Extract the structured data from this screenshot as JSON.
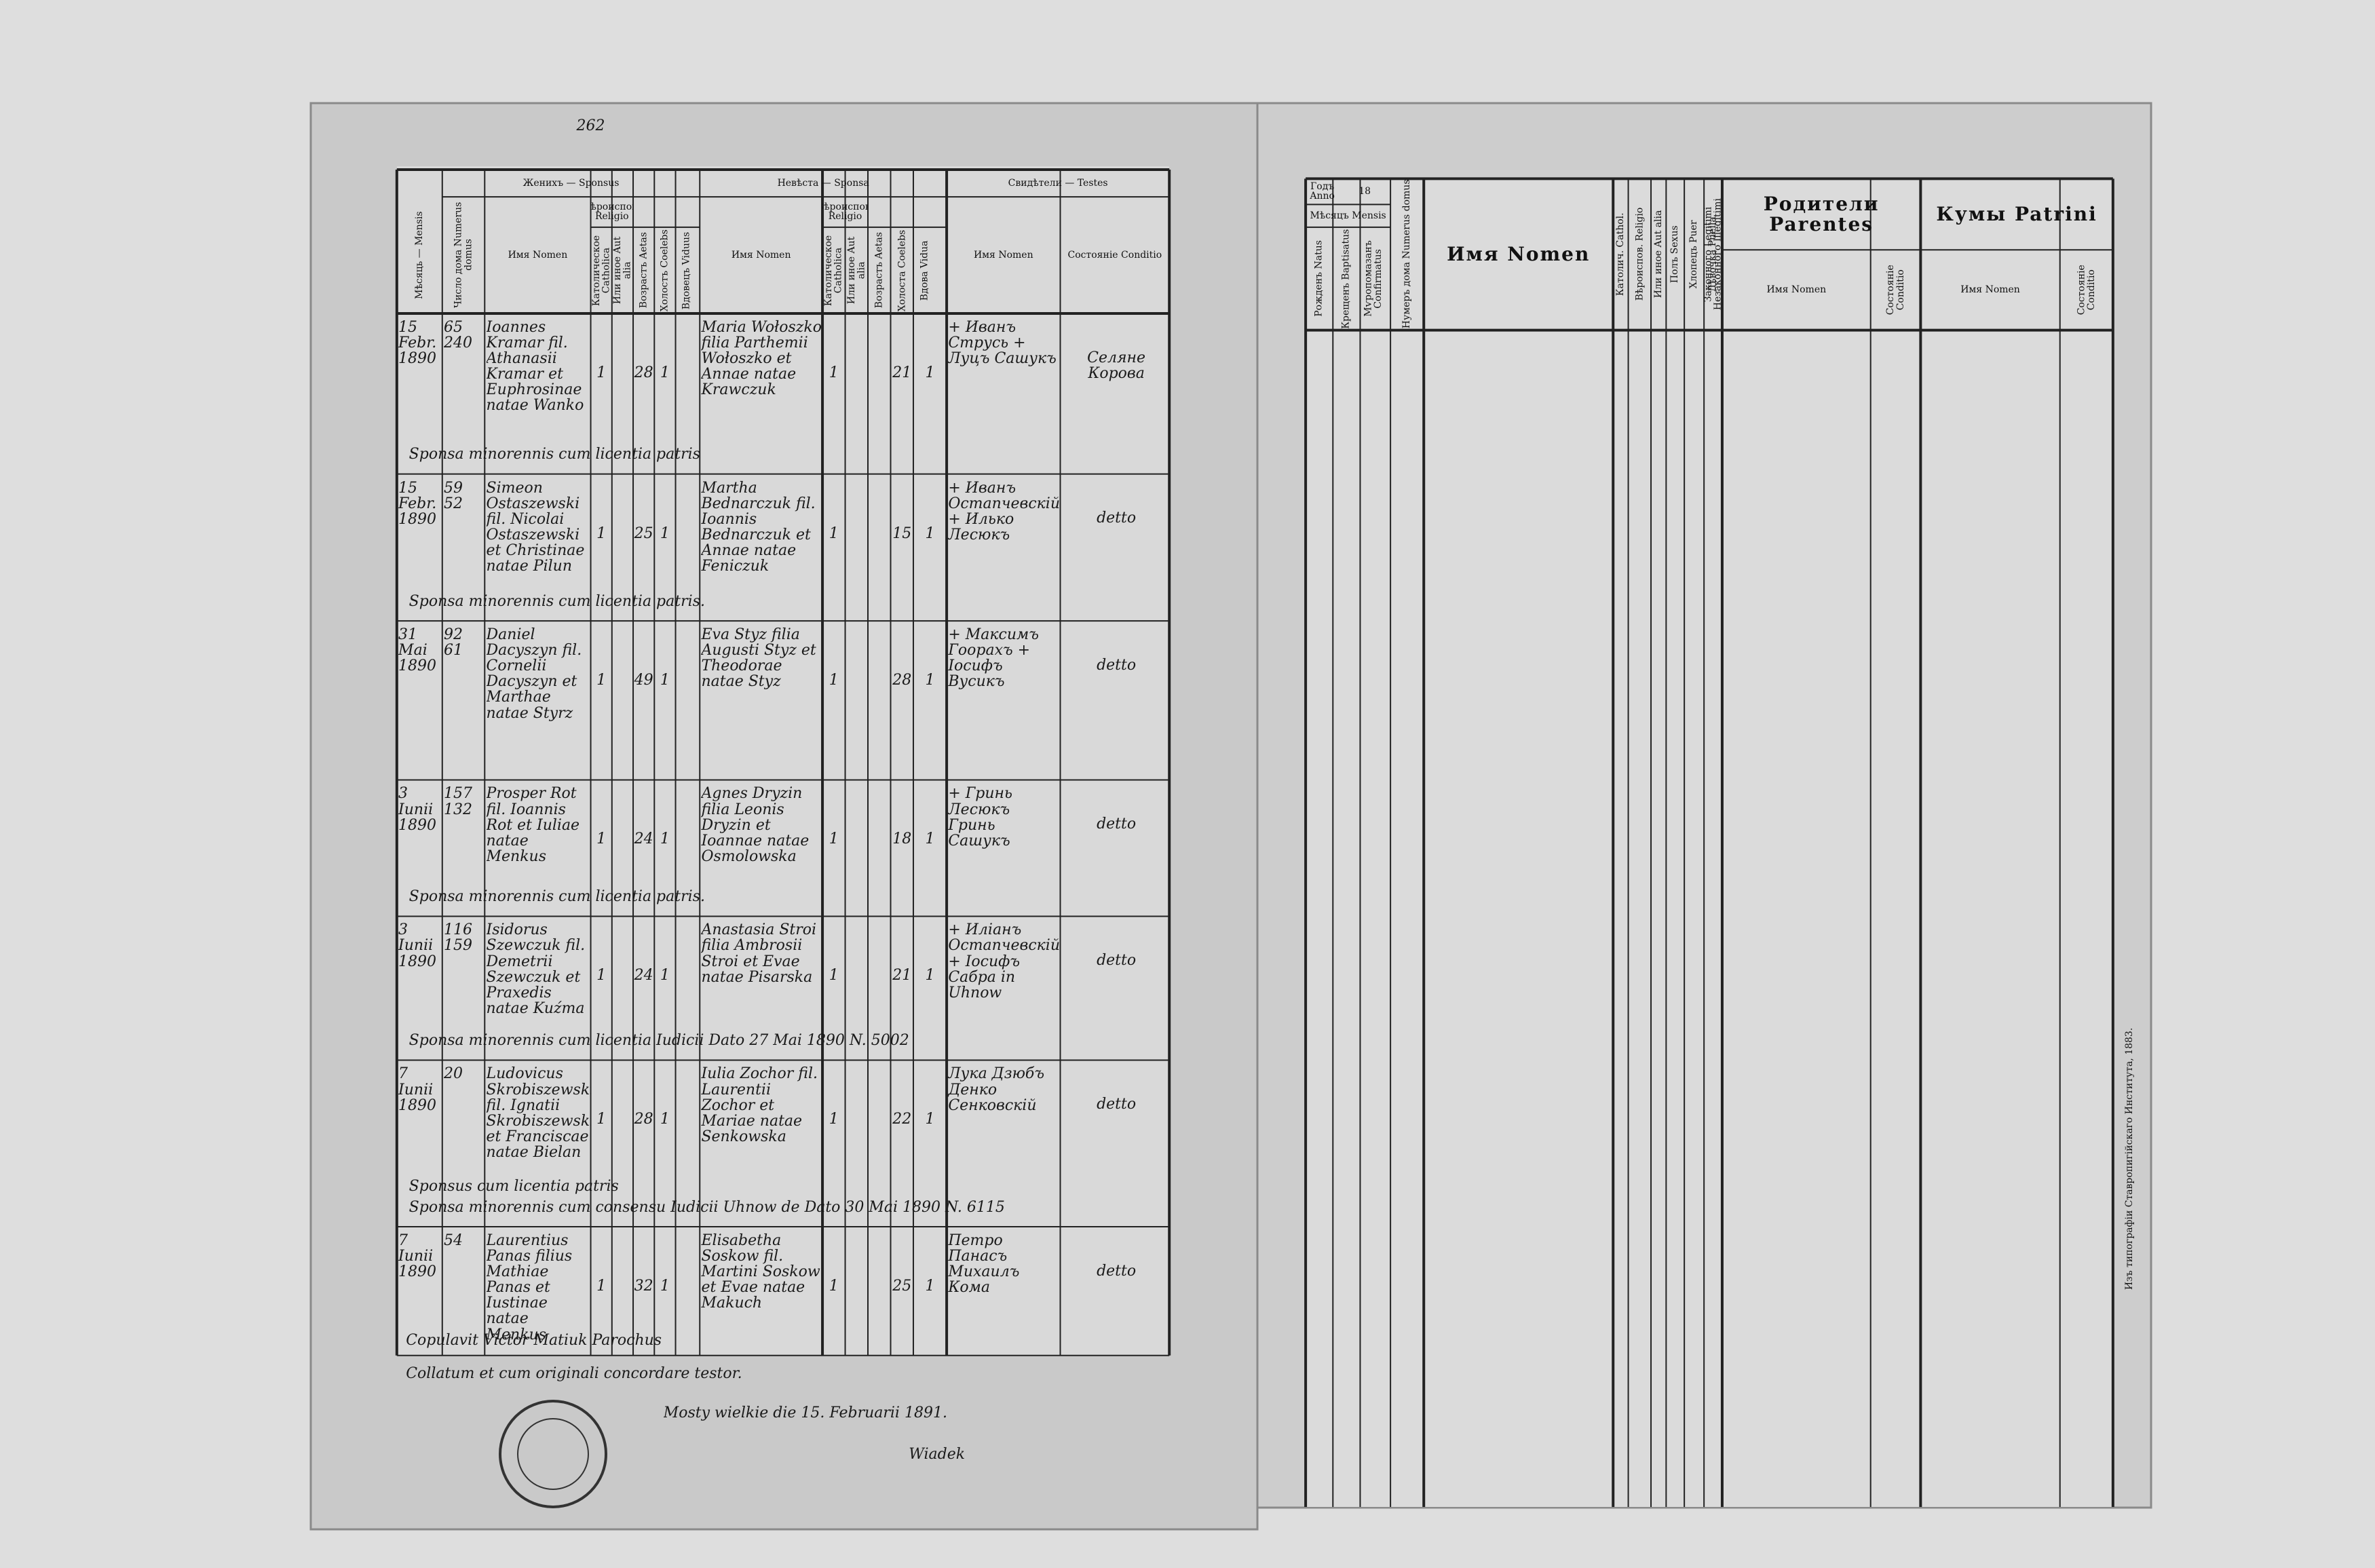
{
  "left_page": {
    "page_number": "262",
    "headers": {
      "month": "Мѣсяць — Mensis",
      "house": "Число дома Numerus domus",
      "sponsus": "Женихъ — Sponsus",
      "sponsus_name": "Имя Nomen",
      "sponsus_religio": "Вѣроиспов. Religio",
      "sponsus_catholica": "Католическое Catholica",
      "sponsus_alia": "Или иное Aut alia",
      "sponsus_aetas": "Возрастъ Aetas",
      "sponsus_coelebs": "Холостъ Coelebs",
      "sponsus_viduus": "Вдовецъ Viduus",
      "sponsa": "Невѣста — Sponsa",
      "sponsa_name": "Имя Nomen",
      "sponsa_religio": "Вѣроиспов. Religio",
      "sponsa_catholica": "Католическое Catholica",
      "sponsa_alia": "Или иное Aut alia",
      "sponsa_aetas": "Возрастъ Aetas",
      "sponsa_coelebs": "Холоста Coelebs",
      "sponsa_vidua": "Вдова Vidua",
      "testes": "Свидѣтели — Testes",
      "testes_name": "Имя Nomen",
      "testes_conditio": "Состоянiе Conditio"
    },
    "rows": [
      {
        "month": "15 Febr. 1890",
        "house": "65 240",
        "groom": "Ioannes Kramar fil. Athanasii Kramar et Euphrosinae natae Wanko",
        "groom_religion": "1",
        "groom_age": "28",
        "groom_status": "1",
        "bride": "Maria Wołoszko filia Parthemii Wołoszko et Annae natae Krawczuk",
        "bride_religion": "1",
        "bride_age": "21",
        "bride_status": "1",
        "witnesses": "+ Иванъ Струсь + Луцъ Сашукъ",
        "condition": "Селяне Корова",
        "notes": [
          "Sponsa minorennis cum licentia patris"
        ]
      },
      {
        "month": "15 Febr. 1890",
        "house": "59 52",
        "groom": "Simeon Ostaszewski fil. Nicolai Ostaszewski et Christinae natae Pilun",
        "groom_religion": "1",
        "groom_age": "25",
        "groom_status": "1",
        "bride": "Martha Bednarczuk fil. Ioannis Bednarczuk et Annae natae Feniczuk",
        "bride_religion": "1",
        "bride_age": "15",
        "bride_status": "1",
        "witnesses": "+ Иванъ Остапчевскiй + Илько Лесюкъ",
        "condition": "detto",
        "notes": [
          "Sponsa minorennis cum licentia patris."
        ]
      },
      {
        "month": "31 Mai 1890",
        "house": "92 61",
        "groom": "Daniel Dacyszyn fil. Cornelii Dacyszyn et Marthae natae Styrz",
        "groom_religion": "1",
        "groom_age": "49",
        "groom_status": "1",
        "bride": "Eva Styz filia Augusti Styz et Theodorae natae Styz",
        "bride_religion": "1",
        "bride_age": "28",
        "bride_status": "1",
        "witnesses": "+ Максимъ Гоорахъ + Iосифъ Вусикъ",
        "condition": "detto",
        "notes": []
      },
      {
        "month": "3 Iunii 1890",
        "house": "157 132",
        "groom": "Prosper Rot fil. Ioannis Rot et Iuliae natae Menkus",
        "groom_religion": "1",
        "groom_age": "24",
        "groom_status": "1",
        "bride": "Agnes Dryzin filia Leonis Dryzin et Ioannae natae Osmolowska",
        "bride_religion": "1",
        "bride_age": "18",
        "bride_status": "1",
        "witnesses": "+ Гринь Лесюкъ Гринь Сашукъ",
        "condition": "detto",
        "notes": [
          "Sponsa minorennis cum licentia patris."
        ]
      },
      {
        "month": "3 Iunii 1890",
        "house": "116 159",
        "groom": "Isidorus Szewczuk fil. Demetrii Szewczuk et Praxedis natae Kuźma",
        "groom_religion": "1",
        "groom_age": "24",
        "groom_status": "1",
        "bride": "Anastasia Stroi filia Ambrosii Stroi et Evae natae Pisarska",
        "bride_religion": "1",
        "bride_age": "21",
        "bride_status": "1",
        "witnesses": "+ Илiанъ Остапчевскiй + Iосифъ Сабра in Uhnow",
        "condition": "detto",
        "notes": [
          "Sponsa minorennis cum licentia Iudicii Dato 27 Mai 1890 N. 5002"
        ]
      },
      {
        "month": "7 Iunii 1890",
        "house": "20",
        "groom": "Ludovicus Skrobiszewski fil. Ignatii Skrobiszewski et Franciscae natae Bielan",
        "groom_religion": "1",
        "groom_age": "28",
        "groom_status": "1",
        "bride": "Iulia Zochor fil. Laurentii Zochor et Mariae natae Senkowska",
        "bride_religion": "1",
        "bride_age": "22",
        "bride_status": "1",
        "witnesses": "Лука Дзюбъ Денко Сенковскiй",
        "condition": "detto",
        "notes": [
          "Sponsus cum licentia patris",
          "Sponsa minorennis cum consensu Iudicii Uhnow de Dato 30 Mai 1890 N. 6115"
        ]
      },
      {
        "month": "7 Iunii 1890",
        "house": "54",
        "groom": "Laurentius Panas filius Mathiae Panas et Iustinae natae Menkus",
        "groom_religion": "1",
        "groom_age": "32",
        "groom_status": "1",
        "bride": "Elisabetha Soskow fil. Martini Soskow et Evae natae Makuch",
        "bride_religion": "1",
        "bride_age": "25",
        "bride_status": "1",
        "witnesses": "Петро Панасъ Михаилъ Кома",
        "condition": "detto",
        "notes": []
      }
    ],
    "footer": {
      "copulavit": "Copulavit Victor Matiuk Parochus",
      "collatum": "Collatum et cum originali concordare testor.",
      "place_date": "Mosty wielkie die 15. Februarii 1891.",
      "signature": "Wiadek"
    }
  },
  "right_page": {
    "headers": {
      "anno": "Годъ Anno",
      "year": "18",
      "mensis": "Мѣсяцъ Mensis",
      "natus": "Рожденъ Natus",
      "baptisatus": "Крещенъ Baptisatus",
      "confirmatus": "Мѵропомазанъ Confirmatus",
      "domus": "Нумеръ дома Numerus domus",
      "nomen": "Имя Nomen",
      "catholica": "Католич. Cathol.",
      "alia": "Или иное Aut alia",
      "religio": "Вѣроиспов. Religio",
      "sexus": "Полъ Sexus",
      "puer": "Хлопецъ Puer",
      "puella": "Дѣвочка Puella",
      "legitimi": "Законного Legitimi",
      "illegitimi": "Незаконного Illegitimi",
      "parentes": "Родители Parentes",
      "parentes_nomen": "Имя Nomen",
      "parentes_conditio": "Состоянiе Conditio",
      "patrini": "Кумы Patrini",
      "patrini_nomen": "Имя Nomen",
      "patrini_conditio": "Состоянiе Conditio"
    },
    "imprint": "Изъ типографiи Ставропигiйскаго Института, 1883."
  }
}
